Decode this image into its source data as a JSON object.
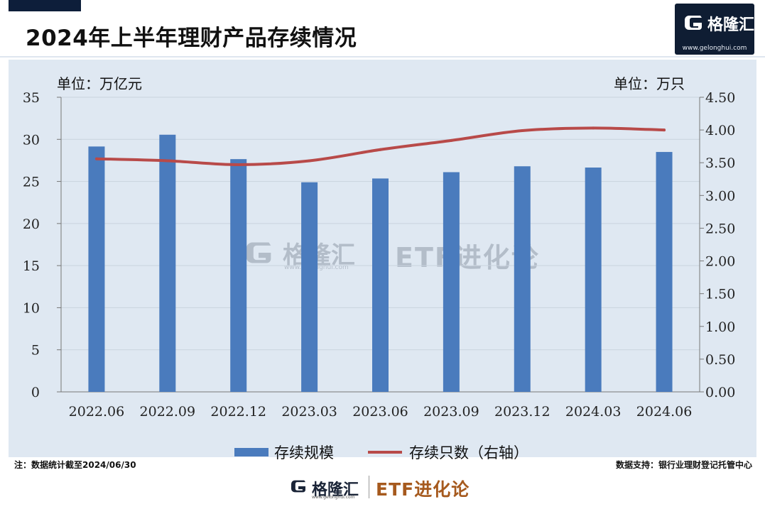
{
  "header": {
    "title": "2024年上半年理财产品存续情况"
  },
  "brand": {
    "name": "格隆汇",
    "url": "www.gelonghui.com",
    "etf_name": "ETF进化论"
  },
  "units": {
    "left": "单位：万亿元",
    "right": "单位：万只"
  },
  "footer": {
    "note": "注：数据统计截至2024/06/30",
    "source": "数据支持：银行业理财登记托管中心"
  },
  "colors": {
    "bar": "#4a7bbd",
    "line": "#b84a49",
    "panel": "#dfe8f2",
    "grid": "#c9d3de"
  },
  "chart_data": {
    "type": "bar",
    "categories": [
      "2022.06",
      "2022.09",
      "2022.12",
      "2023.03",
      "2023.06",
      "2023.09",
      "2023.12",
      "2024.03",
      "2024.06"
    ],
    "series": [
      {
        "name": "存续规模",
        "type": "bar",
        "axis": "left",
        "values": [
          29.15,
          30.55,
          27.65,
          24.9,
          25.35,
          26.1,
          26.8,
          26.65,
          28.5
        ]
      },
      {
        "name": "存续只数（右轴）",
        "type": "line",
        "axis": "right",
        "values": [
          3.56,
          3.53,
          3.47,
          3.53,
          3.7,
          3.84,
          3.99,
          4.03,
          4.0
        ]
      }
    ],
    "ylim_left": [
      0,
      35
    ],
    "yticks_left": [
      "0",
      "5",
      "10",
      "15",
      "20",
      "25",
      "30",
      "35"
    ],
    "ylim_right": [
      0,
      4.5
    ],
    "yticks_right": [
      "0.00",
      "0.50",
      "1.00",
      "1.50",
      "2.00",
      "2.50",
      "3.00",
      "3.50",
      "4.00",
      "4.50"
    ],
    "grid": true,
    "legend": "bottom"
  }
}
